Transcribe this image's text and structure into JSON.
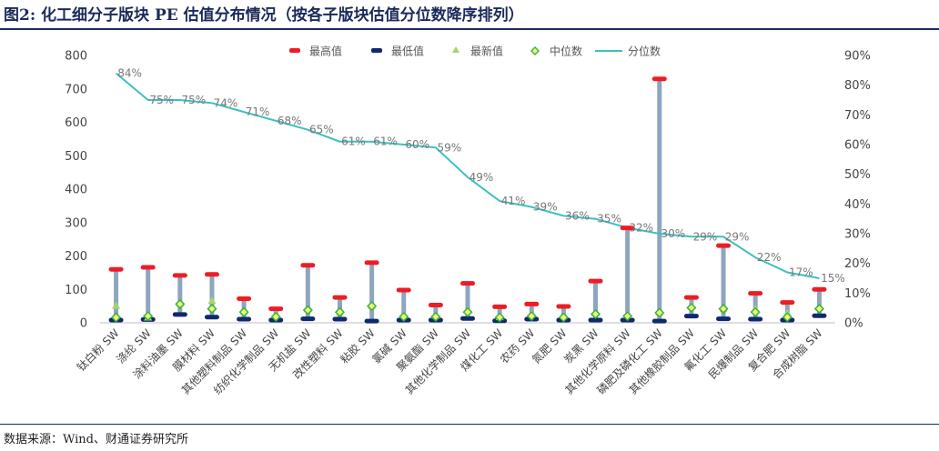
{
  "title": "图2: 化工细分子版块 PE 估值分布情况（按各子版块估值分位数降序排列）",
  "source": "数据来源：Wind、财通证券研究所",
  "colors": {
    "max": "#ee1c24",
    "min": "#0f2a6b",
    "latest": "#a8d46a",
    "median_fill": "#f5f56a",
    "median_stroke": "#32b24a",
    "percentile_line": "#3fbfbf",
    "range_bar": "#8ea5c0",
    "axis_text": "#444444",
    "label_text": "#777777"
  },
  "chart_data": {
    "type": "line",
    "title": "",
    "xlabel": "",
    "ylabel": "",
    "y_left_lim": [
      0,
      800
    ],
    "y_left_ticks": [
      "0",
      "100",
      "200",
      "300",
      "400",
      "500",
      "600",
      "700",
      "800"
    ],
    "y_right_lim": [
      0,
      0.9
    ],
    "y_right_ticks": [
      "0%",
      "10%",
      "20%",
      "30%",
      "40%",
      "50%",
      "60%",
      "70%",
      "80%",
      "90%"
    ],
    "legend_position": "top",
    "legend": [
      "最高值",
      "最低值",
      "最新值",
      "中位数",
      "分位数"
    ],
    "categories": [
      "钛白粉 SW",
      "涤纶 SW",
      "涂料油墨 SW",
      "膜材料 SW",
      "其他塑料制品 SW",
      "纺织化学制品 SW",
      "无机盐 SW",
      "改性塑料 SW",
      "粘胶 SW",
      "氯碱 SW",
      "聚氨酯 SW",
      "其他化学制品 SW",
      "煤化工 SW",
      "农药 SW",
      "氮肥 SW",
      "炭黑 SW",
      "其他化学原料 SW",
      "磷肥及磷化工 SW",
      "其他橡胶制品 SW",
      "氟化工 SW",
      "民爆制品 SW",
      "复合肥 SW",
      "合成树脂 SW"
    ],
    "series": [
      {
        "name": "最高值",
        "values": [
          160,
          166,
          142,
          145,
          72,
          42,
          172,
          76,
          180,
          98,
          53,
          118,
          48,
          56,
          49,
          125,
          284,
          730,
          76,
          231,
          88,
          61,
          100
        ]
      },
      {
        "name": "最低值",
        "values": [
          8,
          10,
          25,
          17,
          11,
          8,
          12,
          11,
          5,
          8,
          8,
          13,
          6,
          11,
          8,
          8,
          8,
          5,
          20,
          12,
          11,
          8,
          21
        ]
      },
      {
        "name": "最新值",
        "values": [
          50,
          15,
          57,
          65,
          32,
          22,
          40,
          30,
          50,
          22,
          20,
          36,
          16,
          25,
          20,
          28,
          22,
          30,
          50,
          40,
          40,
          28,
          45
        ]
      },
      {
        "name": "中位数",
        "values": [
          16,
          20,
          56,
          42,
          32,
          18,
          38,
          32,
          50,
          18,
          18,
          32,
          16,
          20,
          16,
          26,
          20,
          30,
          45,
          42,
          32,
          17,
          42
        ]
      },
      {
        "name": "分位数",
        "axis": "right",
        "values": [
          0.84,
          0.75,
          0.75,
          0.74,
          0.71,
          0.68,
          0.65,
          0.61,
          0.61,
          0.6,
          0.59,
          0.49,
          0.41,
          0.39,
          0.36,
          0.35,
          0.32,
          0.3,
          0.29,
          0.29,
          0.22,
          0.17,
          0.15
        ]
      }
    ],
    "percentile_labels": [
      "84%",
      "75%",
      "75%",
      "74%",
      "71%",
      "68%",
      "65%",
      "61%",
      "61%",
      "60%",
      "59%",
      "49%",
      "41%",
      "39%",
      "36%",
      "35%",
      "32%",
      "30%",
      "29%",
      "29%",
      "22%",
      "17%",
      "15%"
    ]
  }
}
